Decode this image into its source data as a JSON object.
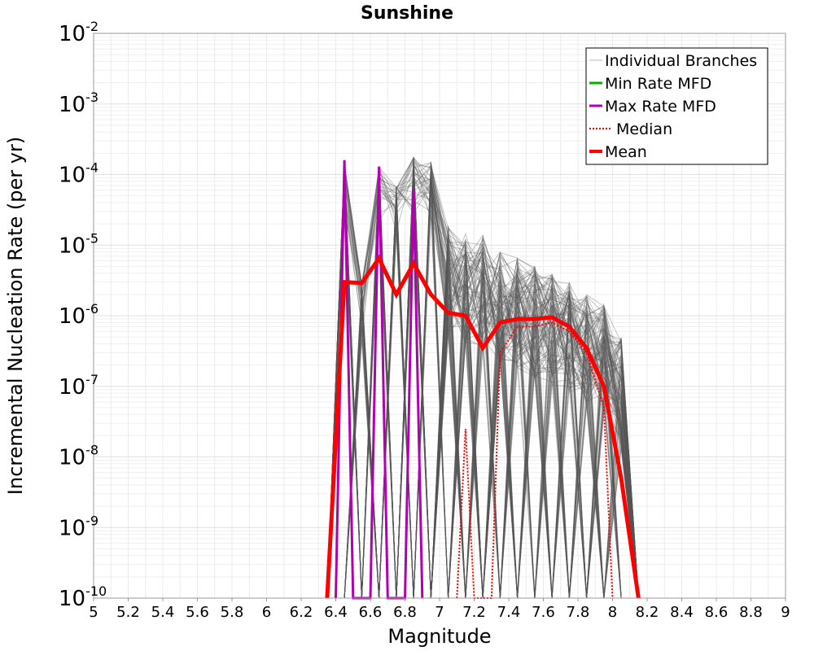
{
  "chart_data": {
    "type": "line",
    "title": "Sunshine",
    "xlabel": "Magnitude",
    "ylabel": "Incremental Nucleation Rate (per yr)",
    "xlim": [
      5,
      9
    ],
    "ylim": [
      1e-10,
      0.01
    ],
    "yscale": "log",
    "grid": true,
    "legend_position": "top-right",
    "x_ticks": [
      "5",
      "5.2",
      "5.4",
      "5.6",
      "5.8",
      "6",
      "6.2",
      "6.4",
      "6.6",
      "6.8",
      "7",
      "7.2",
      "7.4",
      "7.6",
      "7.8",
      "8",
      "8.2",
      "8.4",
      "8.6",
      "8.8",
      "9"
    ],
    "y_ticks": [
      {
        "base": "10",
        "exp": "-2"
      },
      {
        "base": "10",
        "exp": "-3"
      },
      {
        "base": "10",
        "exp": "-4"
      },
      {
        "base": "10",
        "exp": "-5"
      },
      {
        "base": "10",
        "exp": "-6"
      },
      {
        "base": "10",
        "exp": "-7"
      },
      {
        "base": "10",
        "exp": "-8"
      },
      {
        "base": "10",
        "exp": "-9"
      },
      {
        "base": "10",
        "exp": "-10"
      }
    ],
    "series": [
      {
        "name": "Mean",
        "color": "#ff0000",
        "style": "solid-thick",
        "x": [
          6.35,
          6.45,
          6.55,
          6.65,
          6.75,
          6.85,
          6.95,
          7.05,
          7.15,
          7.25,
          7.35,
          7.45,
          7.55,
          7.65,
          7.75,
          7.85,
          7.95,
          8.05,
          8.15
        ],
        "y": [
          1e-10,
          3e-06,
          2.9e-06,
          6.5e-06,
          2e-06,
          5.5e-06,
          2e-06,
          1.1e-06,
          1e-06,
          3.5e-07,
          8e-07,
          9e-07,
          9e-07,
          9.5e-07,
          7e-07,
          3.5e-07,
          1e-07,
          5e-09,
          1e-10
        ]
      },
      {
        "name": "Median",
        "color": "#ff0000",
        "style": "dotted",
        "x": [
          7.1,
          7.15,
          7.2,
          7.3,
          7.35,
          7.45,
          7.55,
          7.65,
          7.75,
          7.85,
          7.95,
          8.0
        ],
        "y": [
          1e-10,
          2.5e-08,
          1e-10,
          1e-10,
          3e-07,
          7e-07,
          7e-07,
          8e-07,
          6e-07,
          3e-07,
          5e-08,
          1e-10
        ]
      },
      {
        "name": "Max Rate MFD",
        "color": "#b000b0",
        "style": "solid",
        "x": [
          6.4,
          6.45,
          6.5,
          6.6,
          6.65,
          6.7,
          6.8,
          6.85,
          6.9
        ],
        "y": [
          1e-10,
          0.00016,
          1e-10,
          1e-10,
          0.00013,
          1e-10,
          1e-10,
          6e-05,
          1e-10
        ]
      },
      {
        "name": "Min Rate MFD",
        "color": "#00b000",
        "style": "solid",
        "x": [],
        "y": []
      }
    ],
    "individual_branches": {
      "name": "Individual Branches",
      "color": "#555555",
      "peaks": [
        {
          "x": 6.45,
          "y": 0.00016
        },
        {
          "x": 6.55,
          "y": 3e-06
        },
        {
          "x": 6.65,
          "y": 0.00013
        },
        {
          "x": 6.75,
          "y": 7e-05
        },
        {
          "x": 6.85,
          "y": 0.00018
        },
        {
          "x": 6.95,
          "y": 0.00015
        },
        {
          "x": 7.05,
          "y": 2e-05
        },
        {
          "x": 7.15,
          "y": 1.5e-05
        },
        {
          "x": 7.25,
          "y": 1.4e-05
        },
        {
          "x": 7.35,
          "y": 8e-06
        },
        {
          "x": 7.45,
          "y": 7e-06
        },
        {
          "x": 7.55,
          "y": 5e-06
        },
        {
          "x": 7.65,
          "y": 4e-06
        },
        {
          "x": 7.75,
          "y": 3e-06
        },
        {
          "x": 7.85,
          "y": 2e-06
        },
        {
          "x": 7.95,
          "y": 1.5e-06
        },
        {
          "x": 8.05,
          "y": 5e-07
        }
      ]
    },
    "legend": [
      {
        "label": "Individual Branches",
        "color": "#bbbbbb",
        "style": "thin"
      },
      {
        "label": "Min Rate MFD",
        "color": "#00b000",
        "style": "solid"
      },
      {
        "label": "Max Rate MFD",
        "color": "#b000b0",
        "style": "solid"
      },
      {
        "label": "Median",
        "color": "#ff0000",
        "style": "dotted"
      },
      {
        "label": "Mean",
        "color": "#ff0000",
        "style": "solid-thick"
      }
    ]
  }
}
